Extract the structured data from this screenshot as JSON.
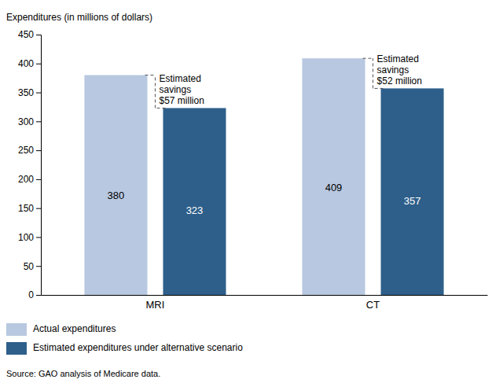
{
  "chart_data": {
    "type": "bar",
    "categories": [
      "MRI",
      "CT"
    ],
    "series": [
      {
        "name": "Actual expenditures",
        "color": "#b8c8e0",
        "values": [
          380,
          409
        ]
      },
      {
        "name": "Estimated expenditures under alternative scenario",
        "color": "#2e5f8a",
        "values": [
          323,
          357
        ]
      }
    ],
    "ylim": [
      0,
      450
    ],
    "yticks": [
      0,
      50,
      100,
      150,
      200,
      250,
      300,
      350,
      400,
      450
    ],
    "y_label": "Expenditures (in millions of dollars)",
    "annotations": [
      "Estimated\nsavings\n$57 million",
      "Estimated\nsavings\n$52 million"
    ],
    "source": "Source: GAO analysis of Medicare data.",
    "data_labels": true,
    "legend": "bottom",
    "grid": false
  }
}
